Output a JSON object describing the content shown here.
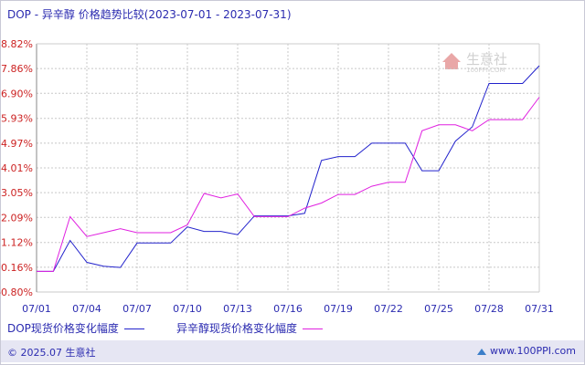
{
  "header": {
    "product": "DOP - 异辛醇 价格趋势比较",
    "date_range": "(2023-07-01 - 2023-07-31)"
  },
  "watermark": {
    "name": "生意社",
    "site": "100PPI.COM"
  },
  "footer": {
    "copyright": "© 2025.07 生意社",
    "site": "www.100PPI.com"
  },
  "colors": {
    "series_1": "#2222cc",
    "series_2": "#e020e0",
    "axis": "#2b2bb0",
    "grid": "#c8c8c8",
    "ytick": "#cc2222"
  },
  "chart_data": {
    "type": "line",
    "title": "DOP - 异辛醇 价格趋势比较 (2023-07-01 - 2023-07-31)",
    "ylim": [
      -0.8,
      8.82
    ],
    "yticks": [
      "8.82%",
      "7.86%",
      "6.90%",
      "5.93%",
      "4.97%",
      "4.01%",
      "3.05%",
      "2.09%",
      "1.12%",
      "0.16%",
      "-0.80%"
    ],
    "ytick_values": [
      8.82,
      7.86,
      6.9,
      5.93,
      4.97,
      4.01,
      3.05,
      2.09,
      1.12,
      0.16,
      -0.8
    ],
    "xticks": [
      "07/01",
      "07/04",
      "07/07",
      "07/10",
      "07/13",
      "07/16",
      "07/19",
      "07/22",
      "07/25",
      "07/28",
      "07/31"
    ],
    "x": [
      "07/01",
      "07/02",
      "07/03",
      "07/04",
      "07/05",
      "07/06",
      "07/07",
      "07/08",
      "07/09",
      "07/10",
      "07/11",
      "07/12",
      "07/13",
      "07/14",
      "07/15",
      "07/16",
      "07/17",
      "07/18",
      "07/19",
      "07/20",
      "07/21",
      "07/22",
      "07/23",
      "07/24",
      "07/25",
      "07/26",
      "07/27",
      "07/28",
      "07/29",
      "07/30",
      "07/31"
    ],
    "grid": true,
    "legend_position": "bottom",
    "series": [
      {
        "name": "DOP现货价格变化幅度",
        "values": [
          0.0,
          0.0,
          1.2,
          0.35,
          0.2,
          0.15,
          1.1,
          1.1,
          1.1,
          1.72,
          1.55,
          1.55,
          1.42,
          2.15,
          2.15,
          2.15,
          2.25,
          4.3,
          4.45,
          4.45,
          4.97,
          4.97,
          4.97,
          3.9,
          3.9,
          5.05,
          5.6,
          7.28,
          7.28,
          7.28,
          7.97
        ]
      },
      {
        "name": "异辛醇现货价格变化幅度",
        "values": [
          0.0,
          0.0,
          2.12,
          1.35,
          1.5,
          1.65,
          1.5,
          1.5,
          1.5,
          1.8,
          3.02,
          2.85,
          3.0,
          2.12,
          2.12,
          2.12,
          2.45,
          2.65,
          2.98,
          2.98,
          3.3,
          3.45,
          3.45,
          5.45,
          5.68,
          5.68,
          5.45,
          5.88,
          5.88,
          5.88,
          6.75
        ]
      }
    ]
  }
}
